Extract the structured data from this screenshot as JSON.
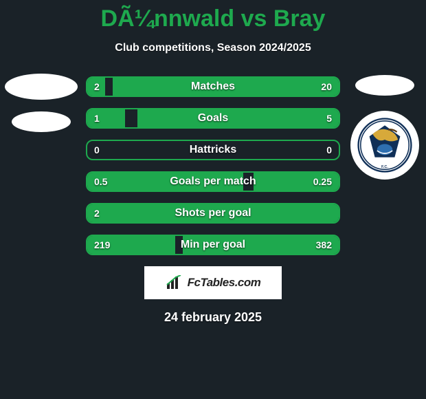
{
  "title": "DÃ¼nnwald vs Bray",
  "subtitle": "Club competitions, Season 2024/2025",
  "date": "24 february 2025",
  "footer_label": "FcTables.com",
  "colors": {
    "accent": "#1ea94e",
    "background": "#1a2228",
    "text": "#ffffff",
    "badge_bg": "#ffffff"
  },
  "rows": [
    {
      "label": "Matches",
      "left": "2",
      "right": "20",
      "left_fill_pct": 7,
      "right_fill_pct": 90
    },
    {
      "label": "Goals",
      "left": "1",
      "right": "5",
      "left_fill_pct": 15,
      "right_fill_pct": 80
    },
    {
      "label": "Hattricks",
      "left": "0",
      "right": "0",
      "left_fill_pct": 0,
      "right_fill_pct": 0
    },
    {
      "label": "Goals per match",
      "left": "0.5",
      "right": "0.25",
      "left_fill_pct": 62,
      "right_fill_pct": 34
    },
    {
      "label": "Shots per goal",
      "left": "2",
      "right": "",
      "left_fill_pct": 100,
      "right_fill_pct": 0
    },
    {
      "label": "Min per goal",
      "left": "219",
      "right": "382",
      "left_fill_pct": 35,
      "right_fill_pct": 62
    }
  ]
}
